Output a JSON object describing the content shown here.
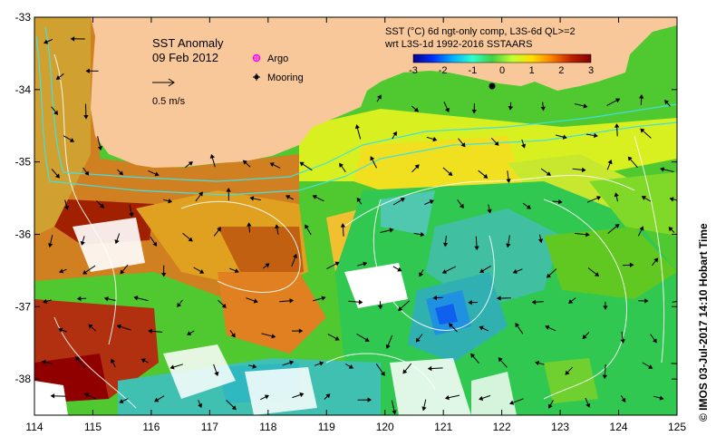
{
  "map": {
    "title": "SST Anomaly",
    "date": "09 Feb 2012",
    "legend": {
      "argo_label": "Argo",
      "mooring_label": "Mooring",
      "argo_color": "#ff00ff",
      "mooring_color": "#000000"
    },
    "scale_arrow_label": "0.5 m/s",
    "colorbar": {
      "title_line1": "SST (°C) 6d ngt-only comp, L3S-6d QL>=2",
      "title_line2": "wrt L3S-1d 1992-2016 SSTAARS",
      "min": -3,
      "max": 3,
      "ticks": [
        "-3",
        "-2",
        "-1",
        "0",
        "1",
        "2",
        "3"
      ],
      "colors": [
        "#08008a",
        "#0030ff",
        "#00b0ff",
        "#30ffd0",
        "#40d040",
        "#c0ff30",
        "#ffe000",
        "#ff8000",
        "#c02000",
        "#800000"
      ]
    },
    "credit": "© IMOS 03-Jul-2017 14:10 Hobart Time",
    "land_color": "#f9c89a",
    "axes": {
      "lon_min": 114,
      "lon_max": 125,
      "lat_min": -38.5,
      "lat_max": -33,
      "x_ticks": [
        "114",
        "115",
        "116",
        "117",
        "118",
        "119",
        "120",
        "121",
        "122",
        "123",
        "124",
        "125"
      ],
      "y_ticks": [
        "-33",
        "-34",
        "-35",
        "-36",
        "-37",
        "-38"
      ]
    }
  }
}
